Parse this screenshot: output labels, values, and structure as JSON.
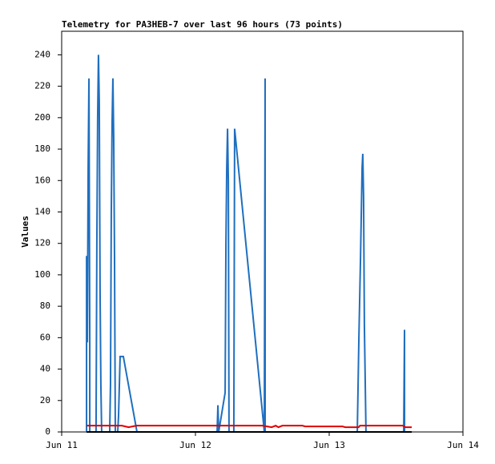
{
  "chart_data": {
    "type": "line",
    "title": "Telemetry for PA3HEB-7 over last 96 hours (73 points)",
    "y_label": "Values",
    "xlim": [
      0,
      3
    ],
    "xticks": [
      {
        "value": 0,
        "label": "Jun 11"
      },
      {
        "value": 1,
        "label": "Jun 12"
      },
      {
        "value": 2,
        "label": "Jun 13"
      },
      {
        "value": 3,
        "label": "Jun 14"
      }
    ],
    "ylim": [
      0,
      255
    ],
    "yticks": [
      0,
      20,
      40,
      60,
      80,
      100,
      120,
      140,
      160,
      180,
      200,
      220,
      240
    ],
    "series": [
      {
        "color": "#1f6fbf",
        "x": [
          0.186,
          0.186,
          0.192,
          0.198,
          0.204,
          0.21,
          0.21,
          0.257,
          0.263,
          0.269,
          0.275,
          0.281,
          0.287,
          0.293,
          0.299,
          0.359,
          0.365,
          0.371,
          0.377,
          0.383,
          0.389,
          0.395,
          0.401,
          0.419,
          0.425,
          0.437,
          0.461,
          0.563,
          1.162,
          1.168,
          1.174,
          1.222,
          1.228,
          1.234,
          1.24,
          1.246,
          1.251,
          1.287,
          1.293,
          1.515,
          1.521,
          1.521,
          2.21,
          2.222,
          2.234,
          2.246,
          2.251,
          2.257,
          2.263,
          2.275,
          2.557,
          2.563,
          2.563
        ],
        "values": [
          0,
          112,
          57,
          168,
          225,
          57,
          0,
          0,
          120,
          200,
          240,
          210,
          90,
          30,
          0,
          0,
          30,
          140,
          197,
          225,
          187,
          112,
          0,
          0,
          10,
          48,
          48,
          0,
          0,
          17,
          0,
          25,
          120,
          168,
          193,
          160,
          0,
          0,
          193,
          0,
          225,
          0,
          0,
          60,
          110,
          168,
          177,
          150,
          68,
          0,
          0,
          65,
          0
        ]
      },
      {
        "color": "#e00000",
        "x": [
          0.186,
          0.45,
          0.5,
          0.56,
          1.5,
          1.57,
          1.6,
          1.62,
          1.65,
          1.8,
          1.82,
          2.1,
          2.12,
          2.22,
          2.23,
          2.55,
          2.57,
          2.617
        ],
        "values": [
          4,
          4,
          3,
          4,
          4,
          3,
          4,
          3,
          4,
          4,
          3.5,
          3.5,
          3,
          3,
          4,
          4,
          3,
          3
        ]
      },
      {
        "color": "#000000",
        "x": [
          0.186,
          2.617
        ],
        "values": [
          0,
          0
        ]
      }
    ]
  }
}
